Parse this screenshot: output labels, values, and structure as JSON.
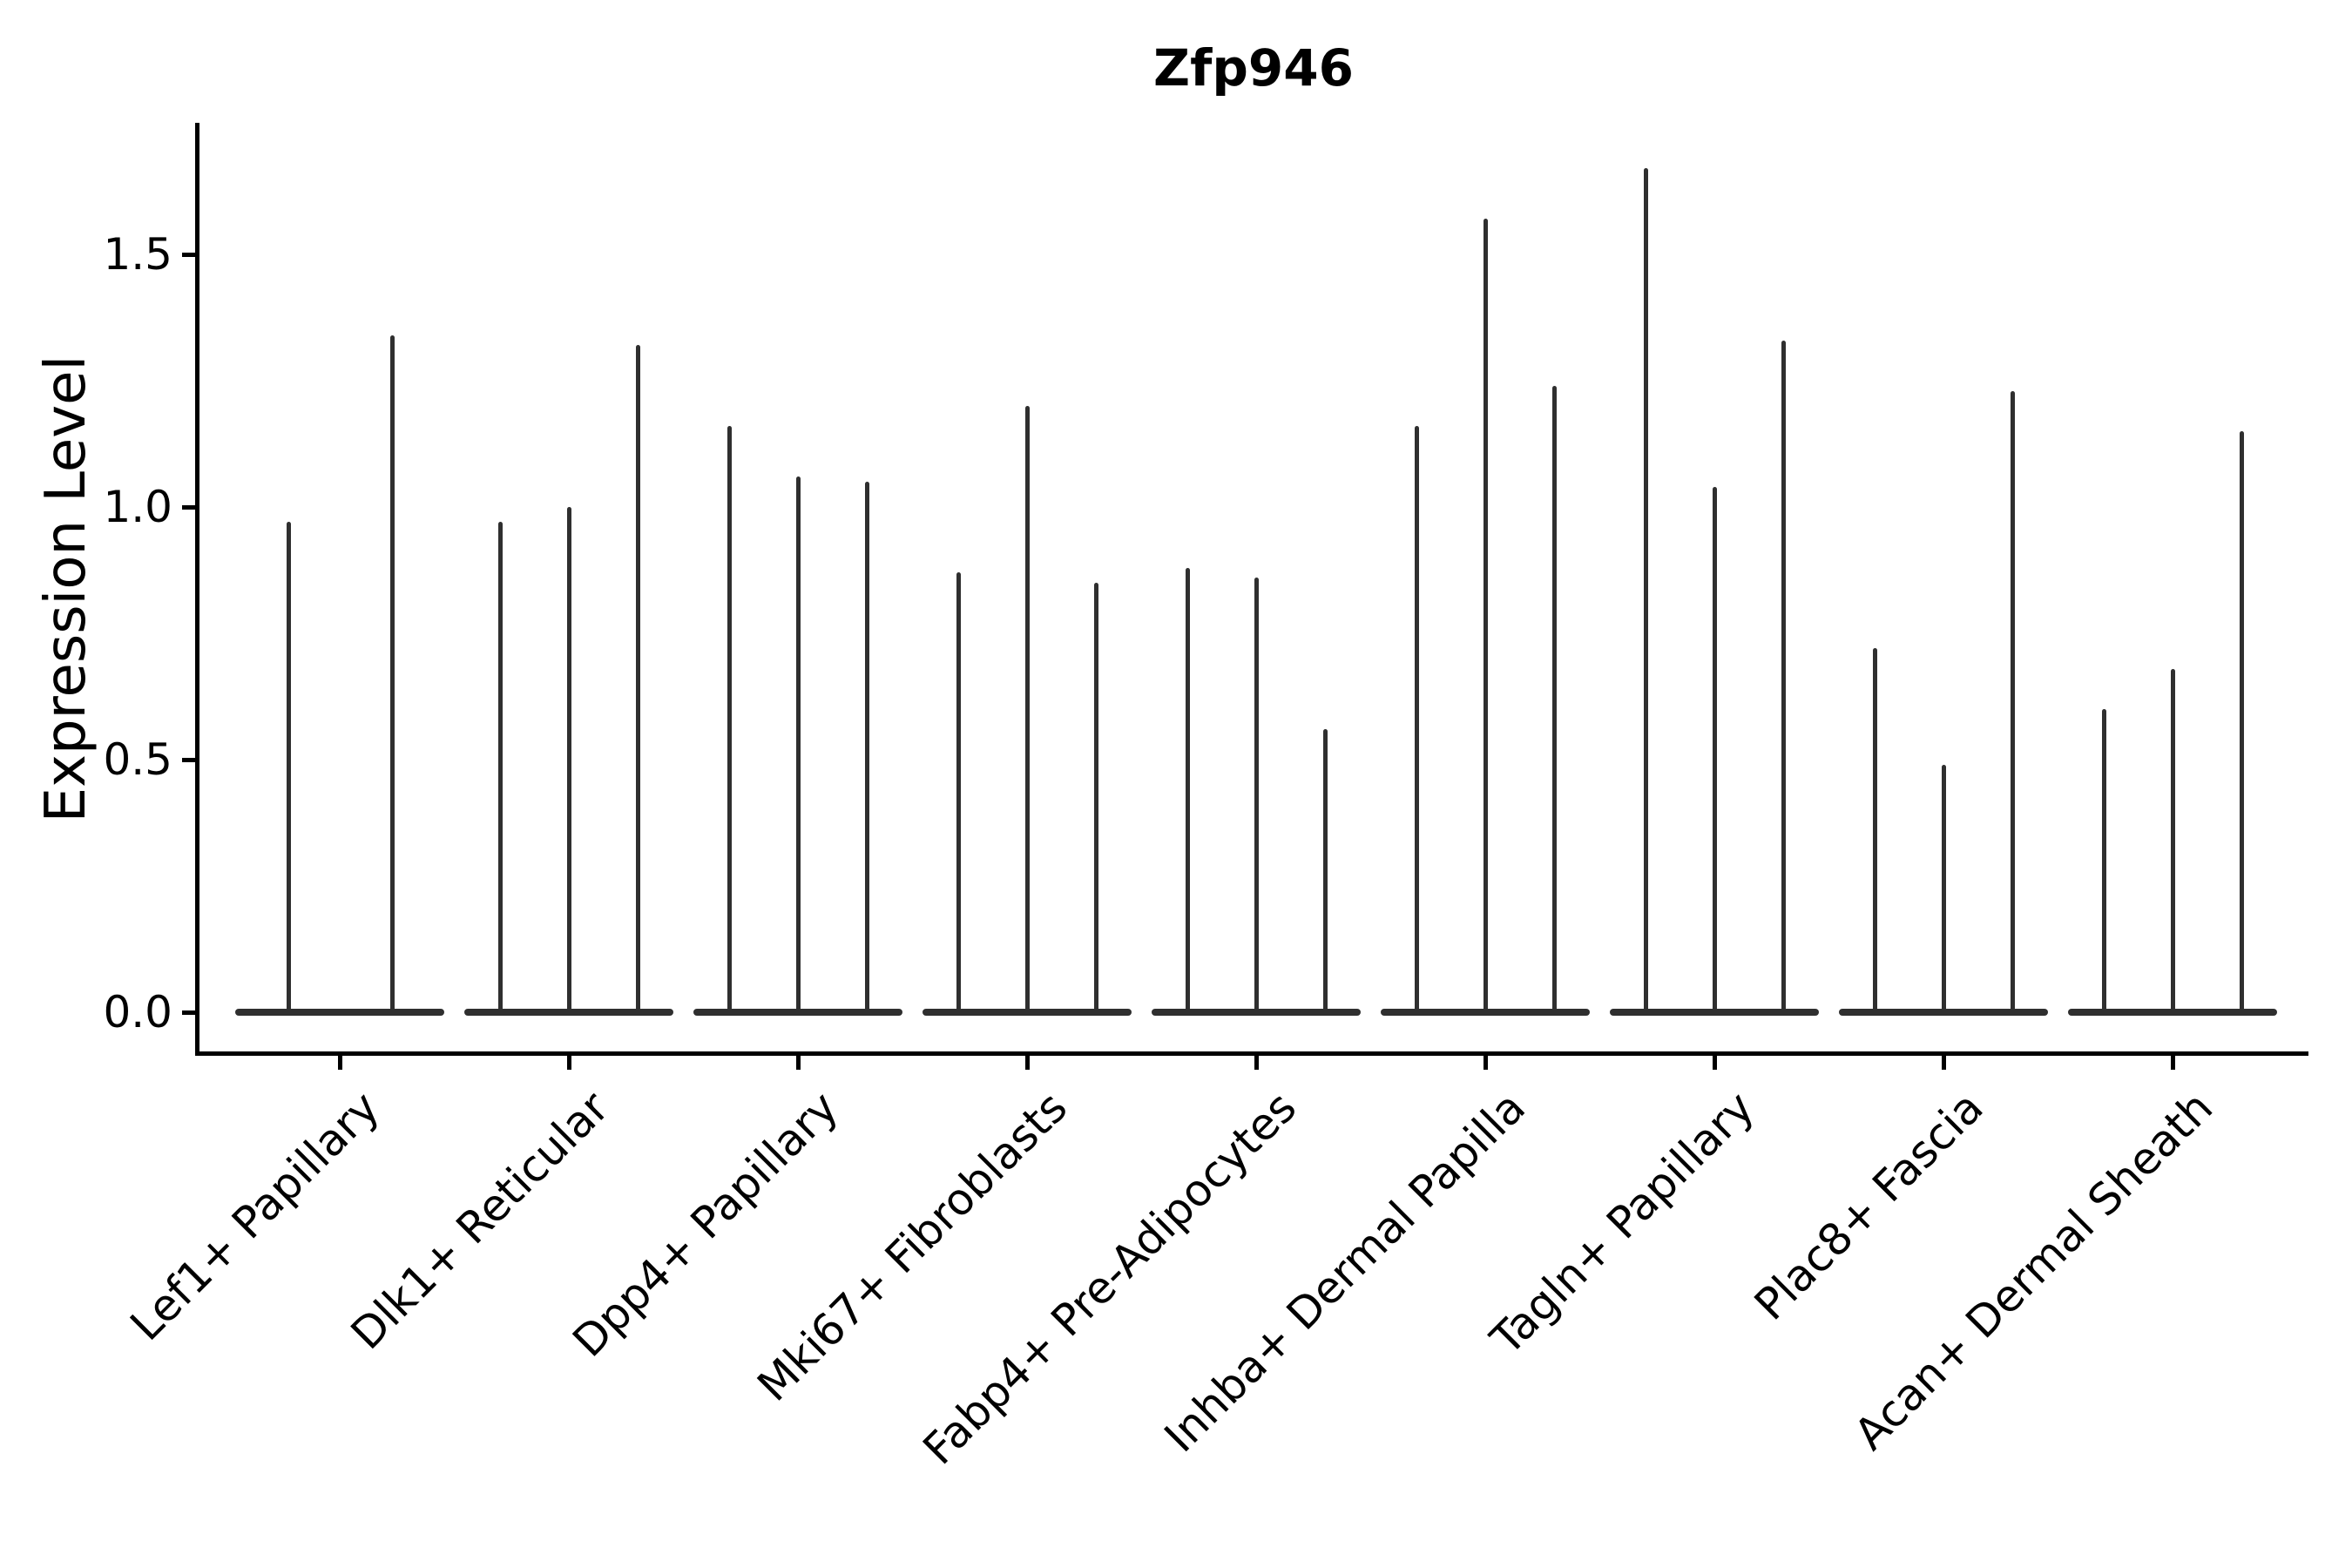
{
  "title": "Zfp946",
  "y_axis": {
    "label": "Expression Level",
    "tick_labels": [
      "0.0",
      "0.5",
      "1.0",
      "1.5"
    ]
  },
  "colors": {
    "violin": "#2f2f2f",
    "axis": "#000000",
    "background": "#ffffff",
    "text": "#000000"
  },
  "chart_data": {
    "type": "violin",
    "title": "Zfp946",
    "ylabel": "Expression Level",
    "xlabel": "",
    "ylim": [
      -0.08,
      1.76
    ],
    "yticks": [
      0.0,
      0.5,
      1.0,
      1.5
    ],
    "ytick_labels": [
      "0.0",
      "0.5",
      "1.0",
      "1.5"
    ],
    "grid": false,
    "legend": "none",
    "x_tick_rotation_deg": 45,
    "description": "Very thin violin plots (spikes) rising from flat baselines at expression 0; each category holds 2-3 violins whose peaks reach the listed expression levels.",
    "categories": [
      "Lef1+ Papillary",
      "Dlk1+ Reticular",
      "Dpp4+ Papillary",
      "Mki67+ Fibroblasts",
      "Fabp4+ Pre-Adipocytes",
      "Inhba+ Dermal Papilla",
      "Tagln+ Papillary",
      "Plac8+ Fascia",
      "Acan+ Dermal Sheath"
    ],
    "series": [
      {
        "name": "Lef1+ Papillary",
        "violin_peaks": [
          0.97,
          1.34
        ]
      },
      {
        "name": "Dlk1+ Reticular",
        "violin_peaks": [
          0.97,
          1.0,
          1.32
        ]
      },
      {
        "name": "Dpp4+ Papillary",
        "violin_peaks": [
          1.16,
          1.06,
          1.05
        ]
      },
      {
        "name": "Mki67+ Fibroblasts",
        "violin_peaks": [
          0.87,
          1.2,
          0.85
        ]
      },
      {
        "name": "Fabp4+ Pre-Adipocytes",
        "violin_peaks": [
          0.88,
          0.86,
          0.56
        ]
      },
      {
        "name": "Inhba+ Dermal Papilla",
        "violin_peaks": [
          1.16,
          1.57,
          1.24
        ]
      },
      {
        "name": "Tagln+ Papillary",
        "violin_peaks": [
          1.67,
          1.04,
          1.33
        ]
      },
      {
        "name": "Plac8+ Fascia",
        "violin_peaks": [
          0.72,
          0.49,
          1.23
        ]
      },
      {
        "name": "Acan+ Dermal Sheath",
        "violin_peaks": [
          0.6,
          0.68,
          1.15
        ]
      }
    ]
  }
}
